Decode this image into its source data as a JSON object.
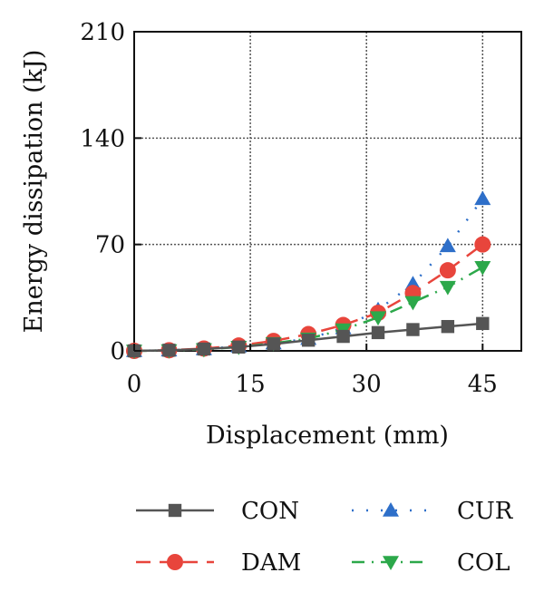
{
  "chart_data": {
    "type": "line",
    "xlabel": "Displacement (mm)",
    "ylabel": "Energy dissipation (kJ)",
    "xlim": [
      0,
      50
    ],
    "ylim": [
      0,
      210
    ],
    "xticks": [
      "0",
      "15",
      "30",
      "45"
    ],
    "yticks": [
      "0",
      "70",
      "140",
      "210"
    ],
    "grid": true,
    "legend_position": "bottom",
    "series": [
      {
        "name": "CON",
        "color": "#555555",
        "marker": "square",
        "linestyle": "solid",
        "x": [
          0,
          4.5,
          9,
          13.5,
          18,
          22.5,
          27,
          31.5,
          36,
          40.5,
          45
        ],
        "y": [
          0,
          0.4,
          1.2,
          2.5,
          4.5,
          7,
          9.5,
          12,
          14,
          16,
          18
        ]
      },
      {
        "name": "CUR",
        "color": "#2e6fc9",
        "marker": "triangle-up",
        "linestyle": "dotted",
        "x": [
          0,
          4.5,
          9,
          13.5,
          18,
          22.5,
          27,
          31.5,
          36,
          40.5,
          45
        ],
        "y": [
          0,
          0.4,
          1.2,
          3,
          5,
          8,
          15,
          27,
          44,
          69,
          100
        ]
      },
      {
        "name": "DAM",
        "color": "#e8453c",
        "marker": "circle",
        "linestyle": "dashed",
        "x": [
          0,
          4.5,
          9,
          13.5,
          18,
          22.5,
          27,
          31.5,
          36,
          40.5,
          45
        ],
        "y": [
          0,
          0.4,
          1.5,
          3.5,
          6.5,
          11,
          17,
          25,
          38,
          53,
          70
        ]
      },
      {
        "name": "COL",
        "color": "#2ca84a",
        "marker": "triangle-down",
        "linestyle": "dashdot",
        "x": [
          0,
          4.5,
          9,
          13.5,
          18,
          22.5,
          27,
          31.5,
          36,
          40.5,
          45
        ],
        "y": [
          0,
          0.3,
          1,
          2.5,
          5,
          8,
          14,
          22,
          32,
          42,
          55
        ]
      }
    ]
  }
}
